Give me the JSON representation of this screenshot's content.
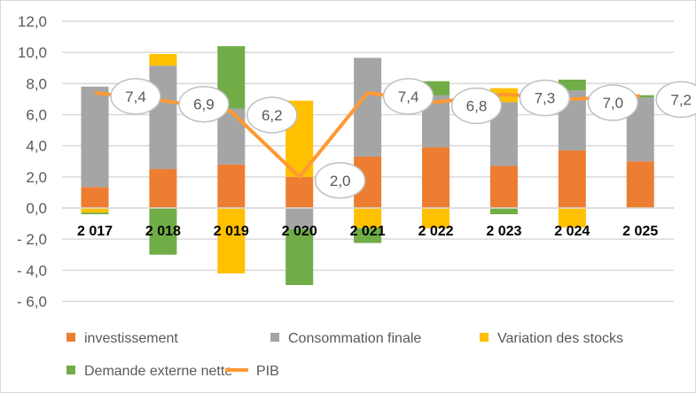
{
  "chart_data": {
    "type": "bar",
    "stacked": true,
    "categories": [
      "2 017",
      "2 018",
      "2 019",
      "2 020",
      "2 021",
      "2 022",
      "2 023",
      "2 024",
      "2 025"
    ],
    "ylim": [
      -6,
      12
    ],
    "yticks": [
      12,
      10,
      8,
      6,
      4,
      2,
      0,
      -2,
      -4,
      -6
    ],
    "ytick_labels": [
      "12,0",
      "10,0",
      "8,0",
      "6,0",
      "4,0",
      "2,0",
      "0,0",
      "- 2,0",
      "- 4,0",
      "- 6,0"
    ],
    "grid": true,
    "legend_position": "bottom",
    "series": [
      {
        "name": "investissement",
        "kind": "bar",
        "color": "#ED7D31",
        "values": [
          1.35,
          2.5,
          2.8,
          2.0,
          3.3,
          3.9,
          2.7,
          3.7,
          3.0
        ]
      },
      {
        "name": "Consommation finale",
        "kind": "bar",
        "color": "#A5A5A5",
        "values": [
          6.45,
          6.65,
          3.6,
          -1.35,
          6.35,
          3.35,
          4.1,
          3.85,
          4.1
        ]
      },
      {
        "name": "Variation des stocks",
        "kind": "bar",
        "color": "#FFC000",
        "values": [
          -0.3,
          0.75,
          -4.2,
          4.9,
          -1.3,
          -1.3,
          0.9,
          -1.25,
          0
        ]
      },
      {
        "name": "Demande externe nette",
        "kind": "bar",
        "color": "#70AD47",
        "values": [
          -0.1,
          -3.0,
          4.0,
          -3.6,
          -0.95,
          0.9,
          -0.4,
          0.7,
          0.15
        ]
      },
      {
        "name": "PIB",
        "kind": "line",
        "color": "#FF9933",
        "values": [
          7.4,
          6.9,
          6.2,
          2.0,
          7.4,
          6.8,
          7.3,
          7.0,
          7.2
        ],
        "labels": [
          "7,4",
          "6,9",
          "6,2",
          "2,0",
          "7,4",
          "6,8",
          "7,3",
          "7,0",
          "7,2"
        ]
      }
    ]
  }
}
